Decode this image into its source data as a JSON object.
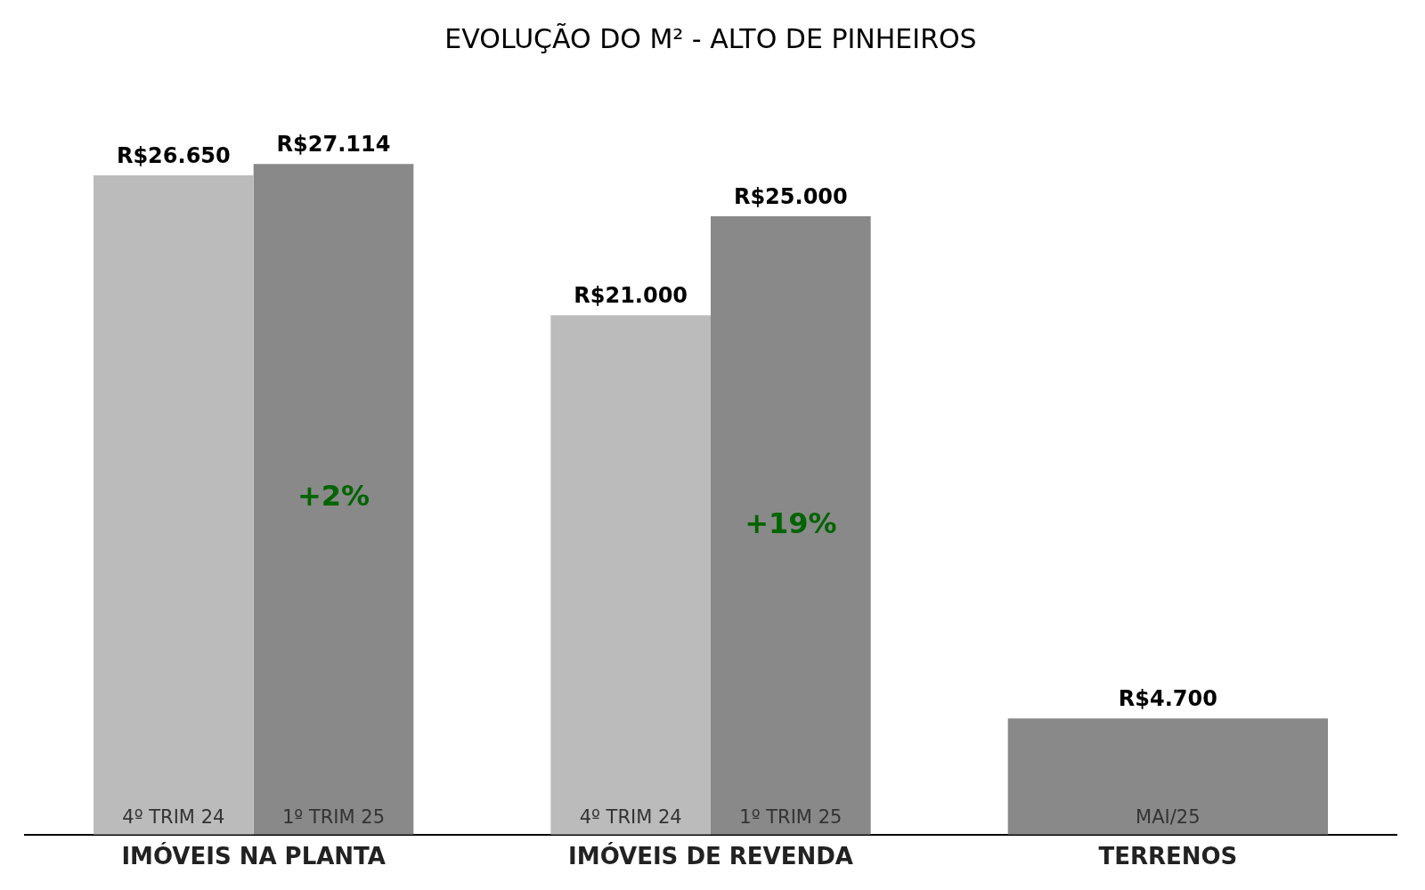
{
  "chart_data": {
    "type": "bar",
    "title": "EVOLUÇÃO DO M² - ALTO DE PINHEIROS",
    "categories": [
      "IMÓVEIS NA PLANTA",
      "IMÓVEIS DE REVENDA",
      "TERRENOS"
    ],
    "series": [
      {
        "name": "4º TRIM 24",
        "color": "#bbbbbb",
        "values": [
          26650,
          21000,
          null
        ],
        "value_labels": [
          "R$26.650",
          "R$21.000",
          null
        ]
      },
      {
        "name": "1º TRIM 25",
        "color": "#898989",
        "values": [
          27114,
          25000,
          null
        ],
        "value_labels": [
          "R$27.114",
          "R$25.000",
          null
        ]
      },
      {
        "name": "MAI/25",
        "color": "#898989",
        "values": [
          null,
          null,
          4700
        ],
        "value_labels": [
          null,
          null,
          "R$4.700"
        ]
      }
    ],
    "annotations": [
      {
        "text": "+2%",
        "x": "IMÓVEIS NA PLANTA",
        "y": 13600
      },
      {
        "text": "+19%",
        "x": "IMÓVEIS DE REVENDA",
        "y": 12500
      }
    ],
    "legend": false,
    "grid": false
  }
}
